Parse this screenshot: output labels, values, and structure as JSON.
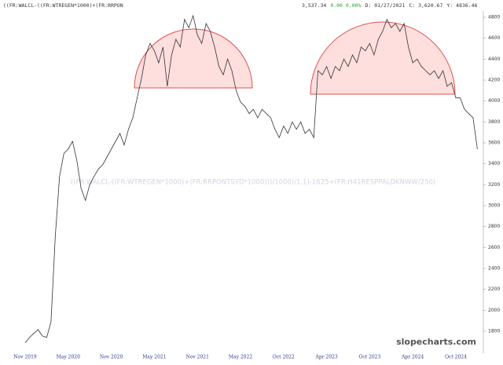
{
  "chart_data": {
    "type": "line",
    "title": "((FR:WALCL-((FR:WTREGEN*1000)+(FR:RRPON",
    "info": [
      {
        "text": "3,537.34",
        "color": "#333333"
      },
      {
        "text": "0.00 0.00%",
        "color": "#2e9e3e"
      },
      {
        "text": "D: 01/27/2021",
        "color": "#333333"
      },
      {
        "text": "C: 3,620.67",
        "color": "#333333"
      },
      {
        "text": "Y: 4836.46",
        "color": "#333333"
      }
    ],
    "annotation": "((FR:WALCL-((FR:WTREGEN*1000)+(FR:RRPONTSYD*1000)))/1000)/1.1)-1625+(FR:H41RESPPALDKNWW/250)",
    "watermark": "slopecharts.com",
    "categories": [
      "Nov 2019",
      null,
      null,
      null,
      null,
      null,
      null,
      null,
      null,
      null,
      "May 2020",
      null,
      null,
      null,
      null,
      null,
      null,
      null,
      null,
      null,
      "Nov 2020",
      null,
      null,
      null,
      null,
      null,
      null,
      null,
      null,
      null,
      "May 2021",
      null,
      null,
      null,
      null,
      null,
      null,
      null,
      null,
      null,
      "Nov 2021",
      null,
      null,
      null,
      null,
      null,
      null,
      null,
      null,
      null,
      "May 2022",
      null,
      null,
      null,
      null,
      null,
      null,
      null,
      null,
      null,
      "Oct 2022",
      null,
      null,
      null,
      null,
      null,
      null,
      null,
      null,
      null,
      "Apr 2023",
      null,
      null,
      null,
      null,
      null,
      null,
      null,
      null,
      null,
      "Oct 2023",
      null,
      null,
      null,
      null,
      null,
      null,
      null,
      null,
      null,
      "Apr 2024",
      null,
      null,
      null,
      null,
      null,
      null,
      null,
      null,
      null,
      "Oct 2024",
      null,
      null,
      null,
      null,
      null
    ],
    "series": [
      {
        "color": "#333333",
        "values": [
          1690,
          1740,
          1780,
          1815,
          1755,
          1740,
          1890,
          2715,
          3280,
          3500,
          3540,
          3615,
          3430,
          3165,
          3050,
          3200,
          3280,
          3350,
          3390,
          3465,
          3540,
          3615,
          3690,
          3580,
          3730,
          3840,
          4030,
          4215,
          4440,
          4550,
          4480,
          4365,
          4515,
          4140,
          4440,
          4590,
          4515,
          4780,
          4700,
          4815,
          4630,
          4550,
          4740,
          4665,
          4515,
          4330,
          4250,
          4400,
          4290,
          4100,
          3990,
          3950,
          3880,
          3920,
          3840,
          3920,
          3880,
          3840,
          3730,
          3650,
          3760,
          3690,
          3800,
          3730,
          3800,
          3690,
          3730,
          3650,
          4290,
          4250,
          4330,
          4215,
          4330,
          4290,
          4400,
          4330,
          4440,
          4365,
          4515,
          4480,
          4550,
          4440,
          4590,
          4665,
          4780,
          4700,
          4740,
          4665,
          4740,
          4515,
          4365,
          4400,
          4330,
          4290,
          4250,
          4290,
          4215,
          4290,
          4140,
          4175,
          4030,
          4030,
          3920,
          3880,
          3840,
          3540
        ]
      }
    ],
    "ylim": [
      1590,
      4965
    ],
    "yticks": [
      1800,
      2000,
      2200,
      2400,
      2600,
      2800,
      3000,
      3200,
      3400,
      3600,
      3800,
      4000,
      4200,
      4400,
      4600,
      4800
    ]
  }
}
